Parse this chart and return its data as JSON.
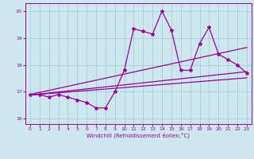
{
  "title": "",
  "xlabel": "Windchill (Refroidissement éolien,°C)",
  "ylabel": "",
  "bg_color": "#cce8ee",
  "line_color": "#990099",
  "grid_color": "#aaccd8",
  "xlim": [
    -0.5,
    23.5
  ],
  "ylim": [
    15.8,
    20.3
  ],
  "yticks": [
    16,
    17,
    18,
    19,
    20
  ],
  "xticks": [
    0,
    1,
    2,
    3,
    4,
    5,
    6,
    7,
    8,
    9,
    10,
    11,
    12,
    13,
    14,
    15,
    16,
    17,
    18,
    19,
    20,
    21,
    22,
    23
  ],
  "x": [
    0,
    1,
    2,
    3,
    4,
    5,
    6,
    7,
    8,
    9,
    10,
    11,
    12,
    13,
    14,
    15,
    16,
    17,
    18,
    19,
    20,
    21,
    22,
    23
  ],
  "y": [
    16.9,
    16.9,
    16.8,
    16.9,
    16.8,
    16.7,
    16.6,
    16.4,
    16.4,
    17.0,
    17.8,
    19.35,
    19.25,
    19.15,
    20.0,
    19.3,
    17.8,
    17.8,
    18.8,
    19.4,
    18.4,
    18.2,
    18.0,
    17.7
  ],
  "trend1_start": 16.9,
  "trend1_end": 18.65,
  "trend2_start": 16.88,
  "trend2_end": 17.75,
  "trend3_start": 16.88,
  "trend3_end": 17.52
}
